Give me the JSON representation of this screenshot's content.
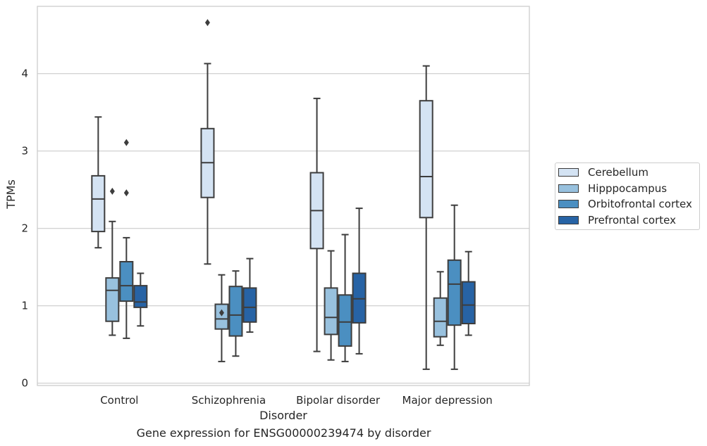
{
  "caption": "Gene expression for ENSG00000239474 by disorder",
  "chart_data": {
    "type": "box",
    "xlabel": "Disorder",
    "ylabel": "TPMs",
    "ylim": [
      -0.03,
      4.87
    ],
    "yticks": [
      0,
      1,
      2,
      3,
      4
    ],
    "grid": "horizontal",
    "legend_position": "right",
    "categories": [
      "Control",
      "Schizophrenia",
      "Bipolar disorder",
      "Major depression"
    ],
    "series": [
      {
        "name": "Cerebellum",
        "color": "#d4e3f3",
        "boxes": [
          {
            "whislo": 1.75,
            "q1": 1.96,
            "med": 2.38,
            "q3": 2.68,
            "whishi": 3.44,
            "fliers": []
          },
          {
            "whislo": 1.54,
            "q1": 2.4,
            "med": 2.85,
            "q3": 3.29,
            "whishi": 4.13,
            "fliers": [
              4.66
            ]
          },
          {
            "whislo": 0.41,
            "q1": 1.74,
            "med": 2.23,
            "q3": 2.72,
            "whishi": 3.68,
            "fliers": []
          },
          {
            "whislo": 0.18,
            "q1": 2.14,
            "med": 2.67,
            "q3": 3.65,
            "whishi": 4.1,
            "fliers": []
          }
        ]
      },
      {
        "name": "Hipppocampus",
        "color": "#98c1de",
        "boxes": [
          {
            "whislo": 0.62,
            "q1": 0.8,
            "med": 1.2,
            "q3": 1.36,
            "whishi": 2.09,
            "fliers": [
              2.48
            ]
          },
          {
            "whislo": 0.28,
            "q1": 0.7,
            "med": 0.83,
            "q3": 1.02,
            "whishi": 1.4,
            "fliers": [
              0.91
            ]
          },
          {
            "whislo": 0.3,
            "q1": 0.63,
            "med": 0.85,
            "q3": 1.23,
            "whishi": 1.71,
            "fliers": []
          },
          {
            "whislo": 0.49,
            "q1": 0.6,
            "med": 0.8,
            "q3": 1.1,
            "whishi": 1.44,
            "fliers": []
          }
        ]
      },
      {
        "name": "Orbitofrontal cortex",
        "color": "#4b8fc1",
        "boxes": [
          {
            "whislo": 0.58,
            "q1": 1.06,
            "med": 1.26,
            "q3": 1.57,
            "whishi": 1.88,
            "fliers": [
              2.46,
              3.11
            ]
          },
          {
            "whislo": 0.35,
            "q1": 0.61,
            "med": 0.88,
            "q3": 1.25,
            "whishi": 1.45,
            "fliers": []
          },
          {
            "whislo": 0.28,
            "q1": 0.48,
            "med": 0.79,
            "q3": 1.14,
            "whishi": 1.92,
            "fliers": []
          },
          {
            "whislo": 0.18,
            "q1": 0.75,
            "med": 1.28,
            "q3": 1.59,
            "whishi": 2.3,
            "fliers": []
          }
        ]
      },
      {
        "name": "Prefrontal cortex",
        "color": "#2763a5",
        "boxes": [
          {
            "whislo": 0.74,
            "q1": 0.98,
            "med": 1.05,
            "q3": 1.26,
            "whishi": 1.42,
            "fliers": []
          },
          {
            "whislo": 0.66,
            "q1": 0.79,
            "med": 0.98,
            "q3": 1.23,
            "whishi": 1.61,
            "fliers": []
          },
          {
            "whislo": 0.38,
            "q1": 0.78,
            "med": 1.09,
            "q3": 1.42,
            "whishi": 2.26,
            "fliers": []
          },
          {
            "whislo": 0.62,
            "q1": 0.77,
            "med": 1.01,
            "q3": 1.31,
            "whishi": 1.7,
            "fliers": []
          }
        ]
      }
    ]
  }
}
